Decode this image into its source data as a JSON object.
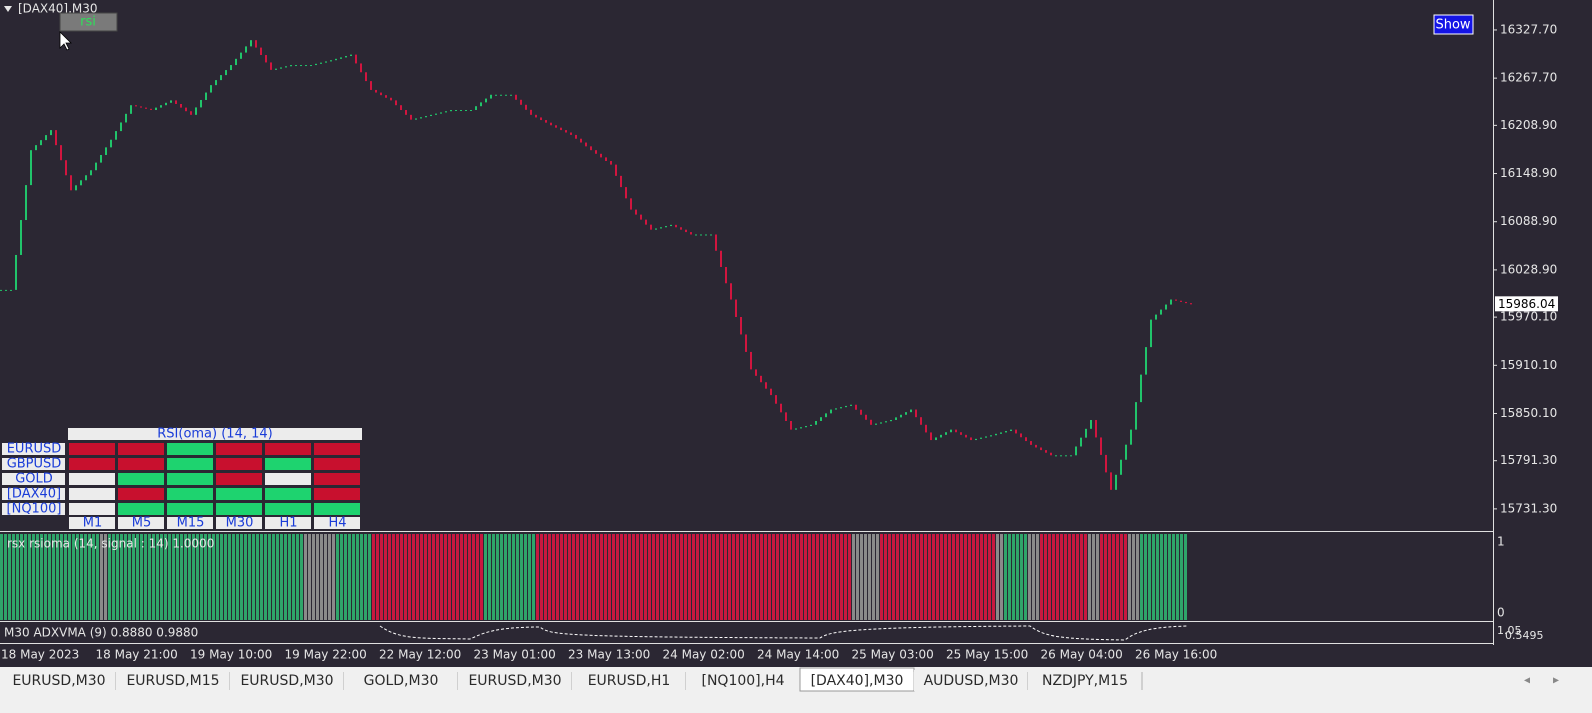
{
  "header": {
    "symbol": "[DAX40],M30",
    "rsi_button": "rsi",
    "show_button": "Show"
  },
  "price_chart": {
    "ylim": [
      15705,
      16365
    ],
    "yticks": [
      {
        "value": 16327.7,
        "label": "16327.70"
      },
      {
        "value": 16267.7,
        "label": "16267.70"
      },
      {
        "value": 16208.9,
        "label": "16208.90"
      },
      {
        "value": 16148.9,
        "label": "16148.90"
      },
      {
        "value": 16088.9,
        "label": "16088.90"
      },
      {
        "value": 16028.9,
        "label": "16028.90"
      },
      {
        "value": 15970.1,
        "label": "15970.10"
      },
      {
        "value": 15910.1,
        "label": "15910.10"
      },
      {
        "value": 15850.1,
        "label": "15850.10"
      },
      {
        "value": 15791.3,
        "label": "15791.30"
      },
      {
        "value": 15731.3,
        "label": "15731.30"
      }
    ],
    "current_price": 15986.04,
    "up_color": "#21c46b",
    "down_color": "#d2153f",
    "closes": [
      16004,
      16178,
      16203,
      16128,
      16153,
      16191,
      16234,
      16228,
      16240,
      16222,
      16259,
      16284,
      16315,
      16278,
      16284,
      16284,
      16290,
      16297,
      16253,
      16240,
      16216,
      16222,
      16228,
      16228,
      16247,
      16247,
      16222,
      16209,
      16197,
      16178,
      16160,
      16104,
      16079,
      16085,
      16073,
      16073,
      15992,
      15905,
      15873,
      15830,
      15836,
      15855,
      15861,
      15836,
      15842,
      15855,
      15817,
      15830,
      15817,
      15823,
      15830,
      15811,
      15798,
      15798,
      15842,
      15755,
      15830,
      15967,
      15992,
      15986
    ],
    "dates": [
      "18 May 2023",
      "18 May 21:00",
      "19 May 10:00",
      "19 May 22:00",
      "22 May 12:00",
      "23 May 01:00",
      "23 May 13:00",
      "24 May 02:00",
      "24 May 14:00",
      "25 May 03:00",
      "25 May 15:00",
      "26 May 04:00",
      "26 May 16:00"
    ]
  },
  "rsi_table": {
    "title": "RSI(oma) (14, 14)",
    "columns": [
      "M1",
      "M5",
      "M15",
      "M30",
      "H1",
      "H4"
    ],
    "rows": [
      {
        "symbol": "EURUSD",
        "cells": [
          "r",
          "r",
          "g",
          "r",
          "r",
          "r"
        ]
      },
      {
        "symbol": "GBPUSD",
        "cells": [
          "r",
          "r",
          "g",
          "r",
          "g",
          "r"
        ]
      },
      {
        "symbol": "GOLD",
        "cells": [
          "w",
          "g",
          "g",
          "r",
          "w",
          "r"
        ]
      },
      {
        "symbol": "[DAX40]",
        "cells": [
          "w",
          "r",
          "g",
          "g",
          "g",
          "r"
        ]
      },
      {
        "symbol": "[NQ100]",
        "cells": [
          "w",
          "g",
          "g",
          "g",
          "g",
          "g"
        ]
      }
    ],
    "colors": {
      "r": "#c8102e",
      "g": "#1ed36f",
      "w": "#ececec"
    }
  },
  "indicator": {
    "label": "rsx rsioma (14, signal : 14) 1.0000",
    "top_label": "1",
    "bottom_label": "0",
    "colors": {
      "g": "#2fa56a",
      "r": "#c8183f",
      "x": "#8a8a8a"
    },
    "segments": [
      [
        "g",
        25
      ],
      [
        "x",
        2
      ],
      [
        "g",
        49
      ],
      [
        "x",
        8
      ],
      [
        "g",
        9
      ],
      [
        "r",
        28
      ],
      [
        "g",
        13
      ],
      [
        "r",
        79
      ],
      [
        "x",
        7
      ],
      [
        "r",
        29
      ],
      [
        "x",
        2
      ],
      [
        "g",
        6
      ],
      [
        "x",
        3
      ],
      [
        "r",
        12
      ],
      [
        "x",
        3
      ],
      [
        "r",
        7
      ],
      [
        "x",
        3
      ],
      [
        "g",
        12
      ]
    ]
  },
  "adxvma": {
    "label": "M30 ADXVMA (9) 0.8880 0.9880",
    "top_label": "1.05",
    "bottom_label": "0.5495"
  },
  "tabs": [
    "EURUSD,M30",
    "EURUSD,M15",
    "EURUSD,M30",
    "GOLD,M30",
    "EURUSD,M30",
    "EURUSD,H1",
    "[NQ100],H4",
    "[DAX40],M30",
    "AUDUSD,M30",
    "NZDJPY,M15"
  ],
  "active_tab": 7
}
